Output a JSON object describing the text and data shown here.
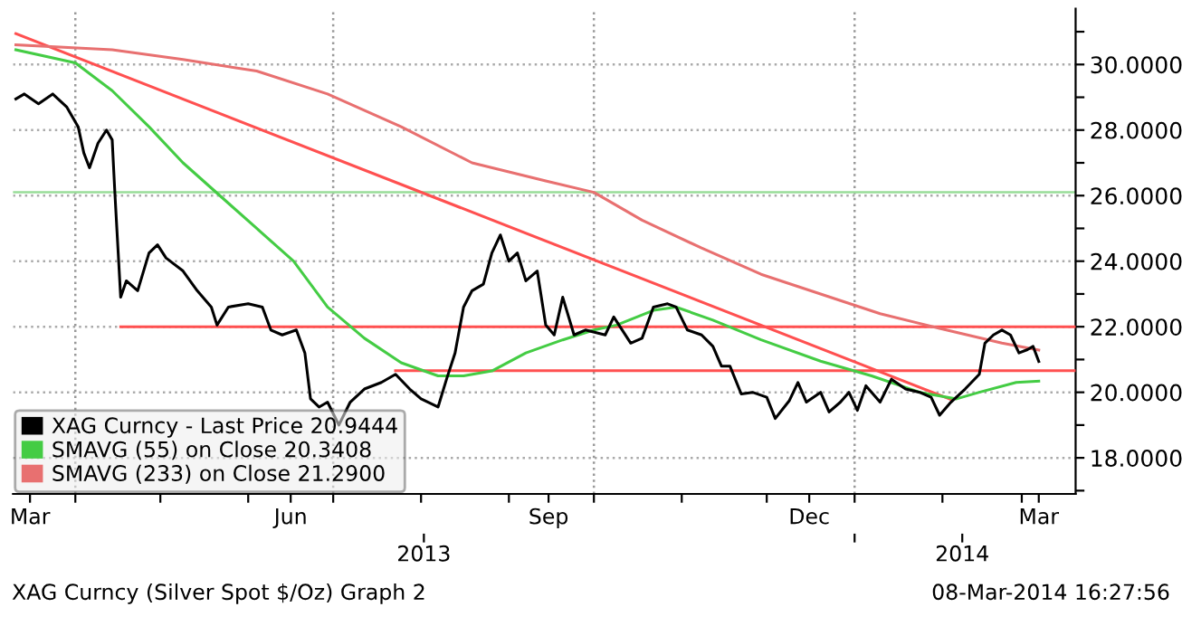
{
  "chart_data": {
    "type": "line",
    "xlim": [
      "2013-03-10",
      "2014-03-20"
    ],
    "xticks": [
      {
        "value": "2013-03-16",
        "label": "Mar"
      },
      {
        "value": "2013-06-16",
        "label": "Jun"
      },
      {
        "value": "2013-09-15",
        "label": "Sep"
      },
      {
        "value": "2013-12-16",
        "label": "Dec"
      },
      {
        "value": "2014-03-07",
        "label": "Mar"
      },
      {
        "value": "2013-04-01",
        "label": null
      },
      {
        "value": "2013-05-01",
        "label": null
      },
      {
        "value": "2013-06-01",
        "label": null
      },
      {
        "value": "2013-07-01",
        "label": null
      },
      {
        "value": "2013-08-01",
        "label": null
      },
      {
        "value": "2013-09-01",
        "label": null
      },
      {
        "value": "2013-10-01",
        "label": null
      },
      {
        "value": "2013-11-01",
        "label": null
      },
      {
        "value": "2013-12-01",
        "label": null
      },
      {
        "value": "2014-01-01",
        "label": null
      },
      {
        "value": "2014-02-01",
        "label": null
      },
      {
        "value": "2014-03-01",
        "label": null
      }
    ],
    "x2lim": [
      "2013-03-10",
      "2014-03-20"
    ],
    "x2ticks": [
      {
        "value": "2013-08-02",
        "label": "2013"
      },
      {
        "value": "2014-02-08",
        "label": "2014"
      },
      {
        "value": "2014-01-01",
        "label": null
      }
    ],
    "ylim": [
      16.9,
      31.7
    ],
    "yticks": [
      {
        "value": 18,
        "label": "18.0000"
      },
      {
        "value": 20,
        "label": "20.0000"
      },
      {
        "value": 22,
        "label": "22.0000"
      },
      {
        "value": 24,
        "label": "24.0000"
      },
      {
        "value": 26,
        "label": "26.0000"
      },
      {
        "value": 28,
        "label": "28.0000"
      },
      {
        "value": 30,
        "label": "30.0000"
      },
      {
        "value": 17,
        "label": null
      },
      {
        "value": 19,
        "label": null
      },
      {
        "value": 21,
        "label": null
      },
      {
        "value": 23,
        "label": null
      },
      {
        "value": 25,
        "label": null
      },
      {
        "value": 27,
        "label": null
      },
      {
        "value": 29,
        "label": null
      },
      {
        "value": 31,
        "label": null
      }
    ],
    "grid": "y",
    "legend": "bottom left",
    "ref_lines": [
      {
        "axis": "x",
        "value": "2013-04-01",
        "color": "#999999",
        "line_style": "dotted"
      },
      {
        "axis": "x",
        "value": "2013-07-01",
        "color": "#999999",
        "line_style": "dotted"
      },
      {
        "axis": "x",
        "value": "2013-10-01",
        "color": "#999999",
        "line_style": "dotted"
      },
      {
        "axis": "x",
        "value": "2014-01-01",
        "color": "#999999",
        "line_style": "dotted"
      },
      {
        "axis": "y",
        "value": 26.1,
        "color": "#99dd99",
        "line_style": "solid"
      }
    ],
    "series": [
      {
        "type": "line",
        "color": "#ff5050",
        "x": [
          "2013-03-11",
          "2014-02-04"
        ],
        "values": [
          30.94,
          19.78
        ]
      },
      {
        "type": "line",
        "color": "#ff5050",
        "x": [
          "2013-04-17",
          "2014-03-20"
        ],
        "values": [
          22.0,
          22.0
        ]
      },
      {
        "type": "line",
        "color": "#ff5050",
        "x": [
          "2013-07-23",
          "2014-03-20"
        ],
        "values": [
          20.66,
          20.66
        ]
      },
      {
        "name": "SMAVG (233) on Close 21.2900",
        "color": "#e87070",
        "x": [
          "2013-03-11",
          "2013-04-14",
          "2013-05-09",
          "2013-06-04",
          "2013-06-29",
          "2013-07-25",
          "2013-08-19",
          "2013-09-14",
          "2013-10-01",
          "2013-10-18",
          "2013-11-08",
          "2013-11-29",
          "2013-12-20",
          "2014-01-10",
          "2014-01-31",
          "2014-02-22",
          "2014-03-07"
        ],
        "values": [
          30.6,
          30.45,
          30.15,
          29.8,
          29.1,
          28.1,
          27.0,
          26.45,
          26.1,
          25.25,
          24.4,
          23.6,
          23.0,
          22.4,
          21.95,
          21.5,
          21.29
        ]
      },
      {
        "name": "SMAVG (55) on Close 20.3408",
        "color": "#44cc44",
        "x": [
          "2013-03-11",
          "2013-04-01",
          "2013-04-14",
          "2013-04-27",
          "2013-05-09",
          "2013-05-22",
          "2013-06-04",
          "2013-06-17",
          "2013-06-29",
          "2013-07-12",
          "2013-07-25",
          "2013-08-07",
          "2013-08-16",
          "2013-08-26",
          "2013-09-07",
          "2013-09-20",
          "2013-10-01",
          "2013-10-09",
          "2013-10-22",
          "2013-10-30",
          "2013-11-12",
          "2013-11-29",
          "2013-12-20",
          "2014-01-07",
          "2014-01-24",
          "2014-02-06",
          "2014-02-14",
          "2014-02-27",
          "2014-03-07"
        ],
        "values": [
          30.45,
          30.05,
          29.2,
          28.1,
          27.0,
          26.0,
          25.0,
          24.0,
          22.6,
          21.65,
          20.9,
          20.5,
          20.5,
          20.65,
          21.2,
          21.6,
          21.9,
          22.05,
          22.5,
          22.6,
          22.2,
          21.6,
          20.95,
          20.5,
          20.0,
          19.8,
          20.0,
          20.3,
          20.34
        ]
      },
      {
        "name": "XAG Curncy - Last Price 20.9444",
        "color": "#000000",
        "x": [
          "2013-03-11",
          "2013-03-14",
          "2013-03-19",
          "2013-03-24",
          "2013-03-29",
          "2013-04-02",
          "2013-04-04",
          "2013-04-06",
          "2013-04-09",
          "2013-04-12",
          "2013-04-14",
          "2013-04-15",
          "2013-04-17",
          "2013-04-19",
          "2013-04-23",
          "2013-04-27",
          "2013-04-30",
          "2013-05-03",
          "2013-05-09",
          "2013-05-14",
          "2013-05-19",
          "2013-05-21",
          "2013-05-25",
          "2013-06-01",
          "2013-06-06",
          "2013-06-09",
          "2013-06-13",
          "2013-06-18",
          "2013-06-21",
          "2013-06-23",
          "2013-06-26",
          "2013-06-29",
          "2013-07-03",
          "2013-07-07",
          "2013-07-12",
          "2013-07-18",
          "2013-07-23",
          "2013-07-28",
          "2013-08-01",
          "2013-08-07",
          "2013-08-10",
          "2013-08-13",
          "2013-08-16",
          "2013-08-19",
          "2013-08-23",
          "2013-08-26",
          "2013-08-29",
          "2013-09-01",
          "2013-09-04",
          "2013-09-07",
          "2013-09-11",
          "2013-09-14",
          "2013-09-17",
          "2013-09-20",
          "2013-09-24",
          "2013-09-28",
          "2013-10-05",
          "2013-10-08",
          "2013-10-14",
          "2013-10-18",
          "2013-10-22",
          "2013-10-27",
          "2013-10-30",
          "2013-11-03",
          "2013-11-08",
          "2013-11-12",
          "2013-11-15",
          "2013-11-18",
          "2013-11-22",
          "2013-11-26",
          "2013-12-01",
          "2013-12-04",
          "2013-12-09",
          "2013-12-12",
          "2013-12-15",
          "2013-12-20",
          "2013-12-23",
          "2013-12-27",
          "2013-12-30",
          "2014-01-02",
          "2014-01-05",
          "2014-01-10",
          "2014-01-14",
          "2014-01-19",
          "2014-01-24",
          "2014-01-28",
          "2014-01-31",
          "2014-02-04",
          "2014-02-09",
          "2014-02-14",
          "2014-02-16",
          "2014-02-19",
          "2014-02-22",
          "2014-02-25",
          "2014-02-28",
          "2014-03-03",
          "2014-03-05",
          "2014-03-07"
        ],
        "values": [
          28.95,
          29.1,
          28.8,
          29.1,
          28.7,
          28.1,
          27.3,
          26.85,
          27.6,
          28.0,
          27.7,
          26.0,
          22.9,
          23.4,
          23.1,
          24.25,
          24.5,
          24.1,
          23.7,
          23.1,
          22.6,
          22.05,
          22.6,
          22.7,
          22.6,
          21.9,
          21.75,
          21.9,
          21.2,
          19.8,
          19.55,
          19.7,
          19.0,
          19.7,
          20.1,
          20.3,
          20.55,
          20.1,
          19.8,
          19.55,
          20.4,
          21.2,
          22.6,
          23.1,
          23.3,
          24.25,
          24.8,
          24.0,
          24.25,
          23.4,
          23.7,
          22.05,
          21.75,
          22.9,
          21.75,
          21.9,
          21.75,
          22.3,
          21.5,
          21.65,
          22.6,
          22.7,
          22.6,
          21.9,
          21.75,
          21.4,
          20.8,
          20.8,
          19.95,
          20.0,
          19.85,
          19.2,
          19.75,
          20.3,
          19.7,
          20.0,
          19.4,
          19.7,
          20.0,
          19.45,
          20.2,
          19.7,
          20.4,
          20.1,
          20.0,
          19.85,
          19.3,
          19.7,
          20.1,
          20.55,
          21.5,
          21.75,
          21.9,
          21.75,
          21.2,
          21.3,
          21.4,
          20.94
        ]
      }
    ],
    "annotations": [
      "XAG Curncy (Silver Spot $/Oz) Graph 2",
      "08-Mar-2014 16:27:56"
    ]
  }
}
